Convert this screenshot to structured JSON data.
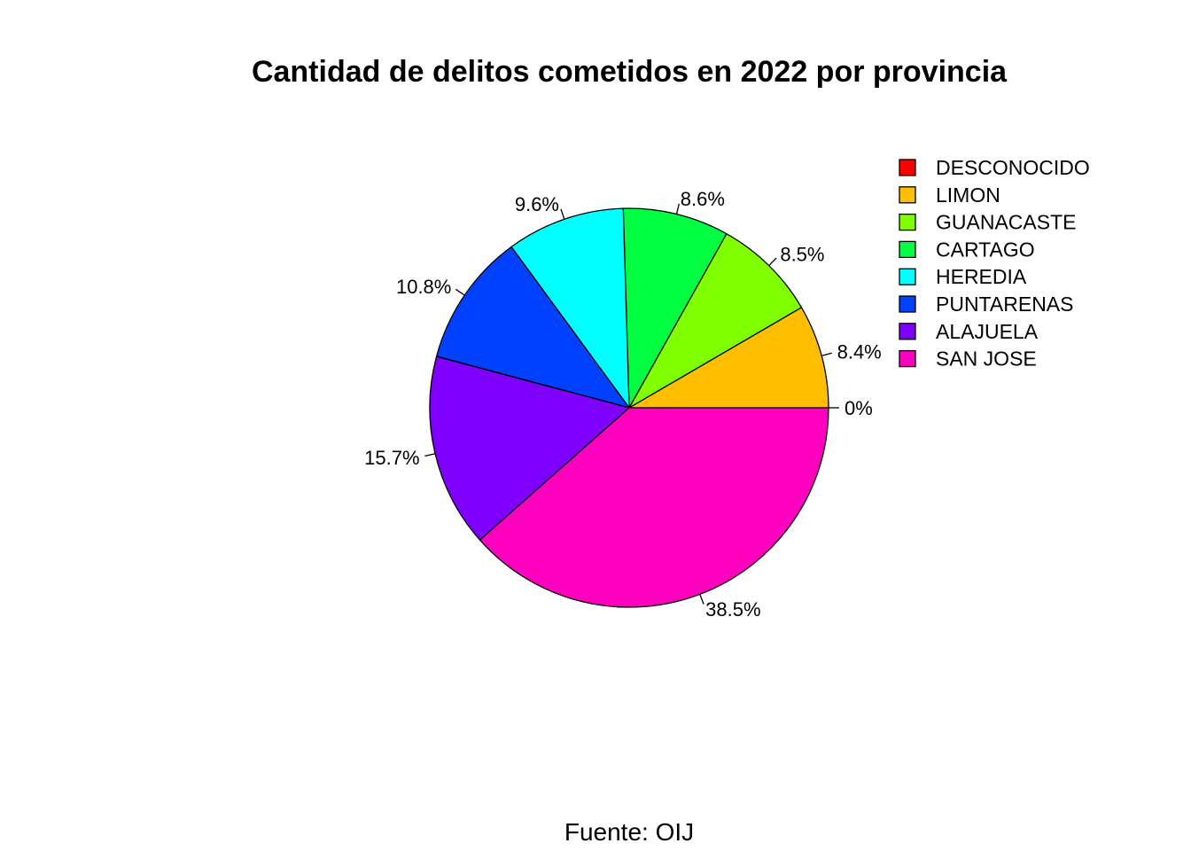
{
  "chart_data": {
    "type": "pie",
    "title": "Cantidad de delitos cometidos en 2022 por provincia",
    "caption": "Fuente: OIJ",
    "start_angle_deg": 0,
    "direction": "counterclockwise",
    "legend_position": "top-right",
    "slices": [
      {
        "name": "DESCONOCIDO",
        "value": 0.0,
        "label": "0%",
        "color": "#FF0000"
      },
      {
        "name": "LIMON",
        "value": 8.4,
        "label": "8.4%",
        "color": "#FFBF00"
      },
      {
        "name": "GUANACASTE",
        "value": 8.5,
        "label": "8.5%",
        "color": "#80FF00"
      },
      {
        "name": "CARTAGO",
        "value": 8.6,
        "label": "8.6%",
        "color": "#00FF40"
      },
      {
        "name": "HEREDIA",
        "value": 9.6,
        "label": "9.6%",
        "color": "#00FFFF"
      },
      {
        "name": "PUNTARENAS",
        "value": 10.8,
        "label": "10.8%",
        "color": "#0040FF"
      },
      {
        "name": "ALAJUELA",
        "value": 15.7,
        "label": "15.7%",
        "color": "#8000FF"
      },
      {
        "name": "SAN JOSE",
        "value": 38.5,
        "label": "38.5%",
        "color": "#FF00BF"
      }
    ]
  }
}
